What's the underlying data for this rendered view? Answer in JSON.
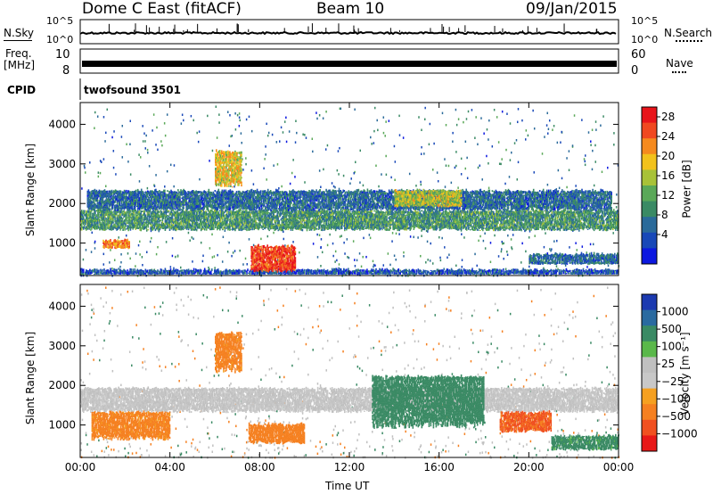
{
  "header": {
    "radar": "Dome C East (fitACF)",
    "beam": "Beam 10",
    "date": "09/Jan/2015"
  },
  "strips": {
    "nsky": {
      "label": "N.Sky",
      "ticks": [
        "10^5",
        "10^0"
      ]
    },
    "nsearch": {
      "label": "N.Search",
      "ticks": [
        "10^5",
        "10^0"
      ]
    },
    "freq": {
      "label_1": "Freq.",
      "label_2": "[MHz]",
      "ticks": [
        "10",
        "8"
      ]
    },
    "nave": {
      "label": "Nave",
      "ticks": [
        "60",
        "0"
      ]
    },
    "cpid": {
      "label": "CPID",
      "value": "twofsound 3501"
    }
  },
  "chart_data": [
    {
      "type": "heatmap",
      "name_printed": "",
      "xlabel": "",
      "ylabel": "Slant Range [km]",
      "x_ticks": [
        "00:00",
        "04:00",
        "08:00",
        "12:00",
        "16:00",
        "20:00",
        "00:00"
      ],
      "y_ticks": [
        "1000",
        "2000",
        "3000",
        "4000"
      ],
      "xlim_hours": [
        0,
        24
      ],
      "ylim_km": [
        180,
        4550
      ],
      "colorbar": {
        "label": "Power [dB]",
        "ticks": [
          "28",
          "24",
          "20",
          "16",
          "12",
          "8",
          "4"
        ],
        "colors": [
          "#e8141a",
          "#f04820",
          "#f58a1e",
          "#f2c21c",
          "#a8c238",
          "#5aa858",
          "#3a8a64",
          "#2a6a9a",
          "#1848b8",
          "#0c18e0"
        ]
      },
      "bands": [
        {
          "from_h": 0.0,
          "to_h": 24.0,
          "lo_km": 1300,
          "hi_km": 1800,
          "level": 12
        },
        {
          "from_h": 0.3,
          "to_h": 23.7,
          "lo_km": 1800,
          "hi_km": 2300,
          "level": 8
        },
        {
          "from_h": 0.0,
          "to_h": 24.0,
          "lo_km": 200,
          "hi_km": 300,
          "level": 6
        },
        {
          "from_h": 1.0,
          "to_h": 2.2,
          "lo_km": 850,
          "hi_km": 1050,
          "level": 24
        },
        {
          "from_h": 7.6,
          "to_h": 9.6,
          "lo_km": 250,
          "hi_km": 900,
          "level": 28
        },
        {
          "from_h": 6.0,
          "to_h": 7.2,
          "lo_km": 2400,
          "hi_km": 3300,
          "level": 20
        },
        {
          "from_h": 14.0,
          "to_h": 17.0,
          "lo_km": 1900,
          "hi_km": 2300,
          "level": 18
        },
        {
          "from_h": 20.0,
          "to_h": 24.0,
          "lo_km": 450,
          "hi_km": 700,
          "level": 8
        }
      ]
    },
    {
      "type": "heatmap",
      "xlabel": "Time UT",
      "ylabel": "Slant Range [km]",
      "x_ticks": [
        "00:00",
        "04:00",
        "08:00",
        "12:00",
        "16:00",
        "20:00",
        "00:00"
      ],
      "y_ticks": [
        "1000",
        "2000",
        "3000",
        "4000"
      ],
      "xlim_hours": [
        0,
        24
      ],
      "ylim_km": [
        180,
        4550
      ],
      "colorbar": {
        "label": "Velocity [m s⁻¹]",
        "ticks": [
          "1000",
          "500",
          "100",
          "25",
          "−25",
          "−100",
          "−500",
          "−1000"
        ],
        "colors": [
          "#1c3ab0",
          "#2a6aa0",
          "#3a8a64",
          "#5ab84a",
          "#c0c0c0",
          "#c8c8c8",
          "#f5a020",
          "#f58020",
          "#f05020",
          "#e81818"
        ]
      },
      "bands": [
        {
          "from_h": 0.0,
          "to_h": 24.0,
          "lo_km": 1300,
          "hi_km": 1900,
          "level": 0
        },
        {
          "from_h": 0.5,
          "to_h": 4.0,
          "lo_km": 600,
          "hi_km": 1300,
          "level": -150
        },
        {
          "from_h": 7.5,
          "to_h": 10.0,
          "lo_km": 500,
          "hi_km": 1000,
          "level": -200
        },
        {
          "from_h": 13.0,
          "to_h": 18.0,
          "lo_km": 900,
          "hi_km": 2200,
          "level": 200
        },
        {
          "from_h": 18.7,
          "to_h": 21.0,
          "lo_km": 800,
          "hi_km": 1300,
          "level": -600
        },
        {
          "from_h": 21.0,
          "to_h": 24.0,
          "lo_km": 350,
          "hi_km": 700,
          "level": 150
        },
        {
          "from_h": 6.0,
          "to_h": 7.2,
          "lo_km": 2300,
          "hi_km": 3300,
          "level": -150
        }
      ]
    }
  ]
}
